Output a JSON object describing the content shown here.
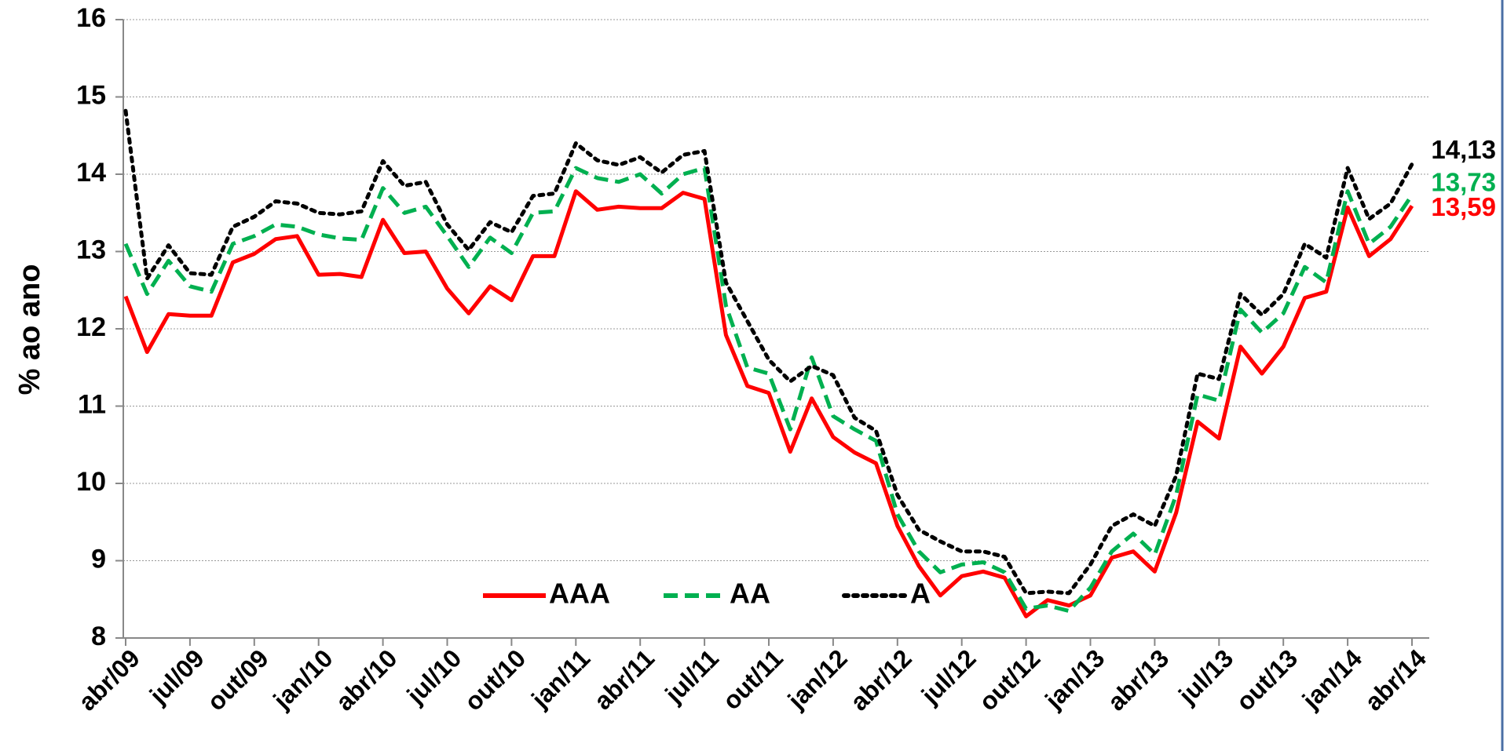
{
  "chart_data": {
    "type": "line",
    "ylabel": "% ao ano",
    "categories": [
      "abr/09",
      null,
      null,
      "jul/09",
      null,
      null,
      "out/09",
      null,
      null,
      "jan/10",
      null,
      null,
      "abr/10",
      null,
      null,
      "jul/10",
      null,
      null,
      "out/10",
      null,
      null,
      "jan/11",
      null,
      null,
      "abr/11",
      null,
      null,
      "jul/11",
      null,
      null,
      "out/11",
      null,
      null,
      "jan/12",
      null,
      null,
      "abr/12",
      null,
      null,
      "jul/12",
      null,
      null,
      "out/12",
      null,
      null,
      "jan/13",
      null,
      null,
      "abr/13",
      null,
      null,
      "jul/13",
      null,
      null,
      "out/13",
      null,
      null,
      "jan/14",
      null,
      null,
      "abr/14"
    ],
    "series": [
      {
        "name": "AAA",
        "color": "#ff0000",
        "style": "solid",
        "values": [
          12.42,
          11.7,
          12.19,
          12.17,
          12.17,
          12.86,
          12.97,
          13.16,
          13.2,
          12.7,
          12.71,
          12.67,
          13.41,
          12.98,
          13.0,
          12.52,
          12.2,
          12.55,
          12.37,
          12.94,
          12.94,
          13.78,
          13.54,
          13.58,
          13.56,
          13.56,
          13.76,
          13.68,
          11.92,
          11.26,
          11.17,
          10.41,
          11.1,
          10.6,
          10.4,
          10.26,
          9.45,
          8.93,
          8.55,
          8.8,
          8.86,
          8.78,
          8.28,
          8.49,
          8.42,
          8.55,
          9.04,
          9.12,
          8.86,
          9.62,
          10.8,
          10.58,
          11.77,
          11.42,
          11.77,
          12.4,
          12.48,
          13.57,
          12.94,
          13.16,
          13.59
        ],
        "value_labels": [
          null,
          null,
          null,
          null,
          null,
          null,
          null,
          null,
          null,
          null,
          null,
          null,
          null,
          null,
          null,
          null,
          null,
          null,
          null,
          null,
          null,
          null,
          null,
          null,
          null,
          null,
          null,
          null,
          null,
          null,
          null,
          null,
          null,
          null,
          null,
          null,
          null,
          null,
          null,
          null,
          null,
          null,
          null,
          null,
          null,
          null,
          null,
          null,
          null,
          null,
          null,
          null,
          null,
          null,
          null,
          null,
          null,
          null,
          null,
          null,
          "13,59"
        ]
      },
      {
        "name": "AA",
        "color": "#00b050",
        "style": "dashed",
        "values": [
          13.1,
          12.45,
          12.88,
          12.55,
          12.48,
          13.1,
          13.2,
          13.35,
          13.32,
          13.22,
          13.17,
          13.15,
          13.82,
          13.5,
          13.58,
          13.2,
          12.8,
          13.18,
          12.98,
          13.5,
          13.52,
          14.08,
          13.95,
          13.9,
          14.0,
          13.75,
          14.0,
          14.08,
          12.3,
          11.5,
          11.42,
          10.7,
          11.63,
          10.87,
          10.7,
          10.55,
          9.6,
          9.12,
          8.85,
          8.95,
          8.98,
          8.85,
          8.38,
          8.42,
          8.35,
          8.65,
          9.12,
          9.35,
          9.08,
          9.85,
          11.15,
          11.07,
          12.25,
          11.95,
          12.2,
          12.8,
          12.6,
          13.78,
          13.1,
          13.32,
          13.73
        ],
        "value_labels": [
          null,
          null,
          null,
          null,
          null,
          null,
          null,
          null,
          null,
          null,
          null,
          null,
          null,
          null,
          null,
          null,
          null,
          null,
          null,
          null,
          null,
          null,
          null,
          null,
          null,
          null,
          null,
          null,
          null,
          null,
          null,
          null,
          null,
          null,
          null,
          null,
          null,
          null,
          null,
          null,
          null,
          null,
          null,
          null,
          null,
          null,
          null,
          null,
          null,
          null,
          null,
          null,
          null,
          null,
          null,
          null,
          null,
          null,
          null,
          null,
          "13,73"
        ]
      },
      {
        "name": "A",
        "color": "#000000",
        "style": "dotted",
        "values": [
          14.82,
          12.65,
          13.08,
          12.72,
          12.7,
          13.32,
          13.45,
          13.65,
          13.62,
          13.5,
          13.48,
          13.52,
          14.17,
          13.85,
          13.9,
          13.35,
          13.02,
          13.38,
          13.25,
          13.72,
          13.75,
          14.4,
          14.18,
          14.12,
          14.22,
          14.02,
          14.25,
          14.3,
          12.6,
          12.1,
          11.6,
          11.32,
          11.52,
          11.4,
          10.85,
          10.68,
          9.85,
          9.4,
          9.25,
          9.12,
          9.12,
          9.05,
          8.58,
          8.6,
          8.58,
          8.95,
          9.45,
          9.6,
          9.45,
          10.1,
          11.42,
          11.35,
          12.45,
          12.18,
          12.45,
          13.1,
          12.92,
          14.08,
          13.42,
          13.62,
          14.13
        ],
        "value_labels": [
          null,
          null,
          null,
          null,
          null,
          null,
          null,
          null,
          null,
          null,
          null,
          null,
          null,
          null,
          null,
          null,
          null,
          null,
          null,
          null,
          null,
          null,
          null,
          null,
          null,
          null,
          null,
          null,
          null,
          null,
          null,
          null,
          null,
          null,
          null,
          null,
          null,
          null,
          null,
          null,
          null,
          null,
          null,
          null,
          null,
          null,
          null,
          null,
          null,
          null,
          null,
          null,
          null,
          null,
          null,
          null,
          null,
          null,
          null,
          null,
          "14,13"
        ]
      }
    ],
    "ylim": [
      8,
      16
    ],
    "yticks": [
      8,
      9,
      10,
      11,
      12,
      13,
      14,
      15,
      16
    ],
    "grid": true,
    "legend": "bottom"
  }
}
